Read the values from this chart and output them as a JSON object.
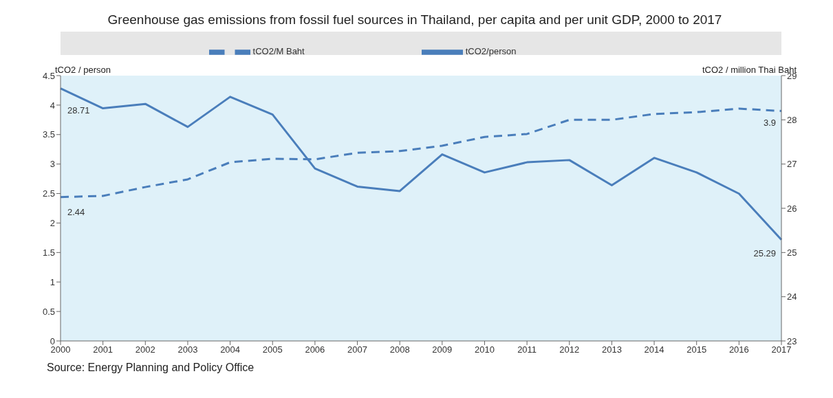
{
  "chart_data": {
    "type": "line",
    "title": "Greenhouse gas emissions from fossil fuel sources in Thailand, per capita and per unit GDP, 2000 to 2017",
    "ylabel": "tCO2 / person",
    "y2label": "tCO2 / million Thai Baht",
    "annotations": [
      "Source: Energy Planning and Policy Office"
    ],
    "categories": [
      "2000",
      "2001",
      "2002",
      "2003",
      "2004",
      "2005",
      "2006",
      "2007",
      "2008",
      "2009",
      "2010",
      "2011",
      "2012",
      "2013",
      "2014",
      "2015",
      "2016",
      "2017"
    ],
    "series": [
      {
        "name": "tCO2/M Baht",
        "color": "#4a7ebb",
        "line_style": "dashed",
        "axis": "y",
        "values": [
          2.44,
          2.46,
          2.61,
          2.74,
          3.03,
          3.09,
          3.08,
          3.19,
          3.22,
          3.31,
          3.46,
          3.51,
          3.75,
          3.75,
          3.85,
          3.88,
          3.94,
          3.9
        ],
        "value_labels": [
          "2.44",
          null,
          null,
          null,
          null,
          null,
          null,
          null,
          null,
          null,
          null,
          null,
          null,
          null,
          null,
          null,
          null,
          "3.9"
        ]
      },
      {
        "name": "tCO2/person",
        "color": "#4a7ebb",
        "line_style": "solid",
        "axis": "y2",
        "values": [
          28.71,
          28.26,
          28.36,
          27.84,
          28.52,
          28.12,
          26.9,
          26.49,
          26.39,
          27.22,
          26.81,
          27.04,
          27.09,
          26.52,
          27.14,
          26.81,
          26.33,
          25.29
        ],
        "value_labels": [
          "28.71",
          null,
          null,
          null,
          null,
          null,
          null,
          null,
          null,
          null,
          null,
          null,
          null,
          null,
          null,
          null,
          null,
          "25.29"
        ]
      }
    ],
    "ylim": [
      0,
      4.5
    ],
    "yticks": [
      0,
      0.5,
      1,
      1.5,
      2,
      2.5,
      3,
      3.5,
      4,
      4.5
    ],
    "y2lim": [
      23,
      29
    ],
    "y2ticks": [
      23,
      24,
      25,
      26,
      27,
      28,
      29
    ],
    "legend": "top",
    "marker": "none"
  }
}
